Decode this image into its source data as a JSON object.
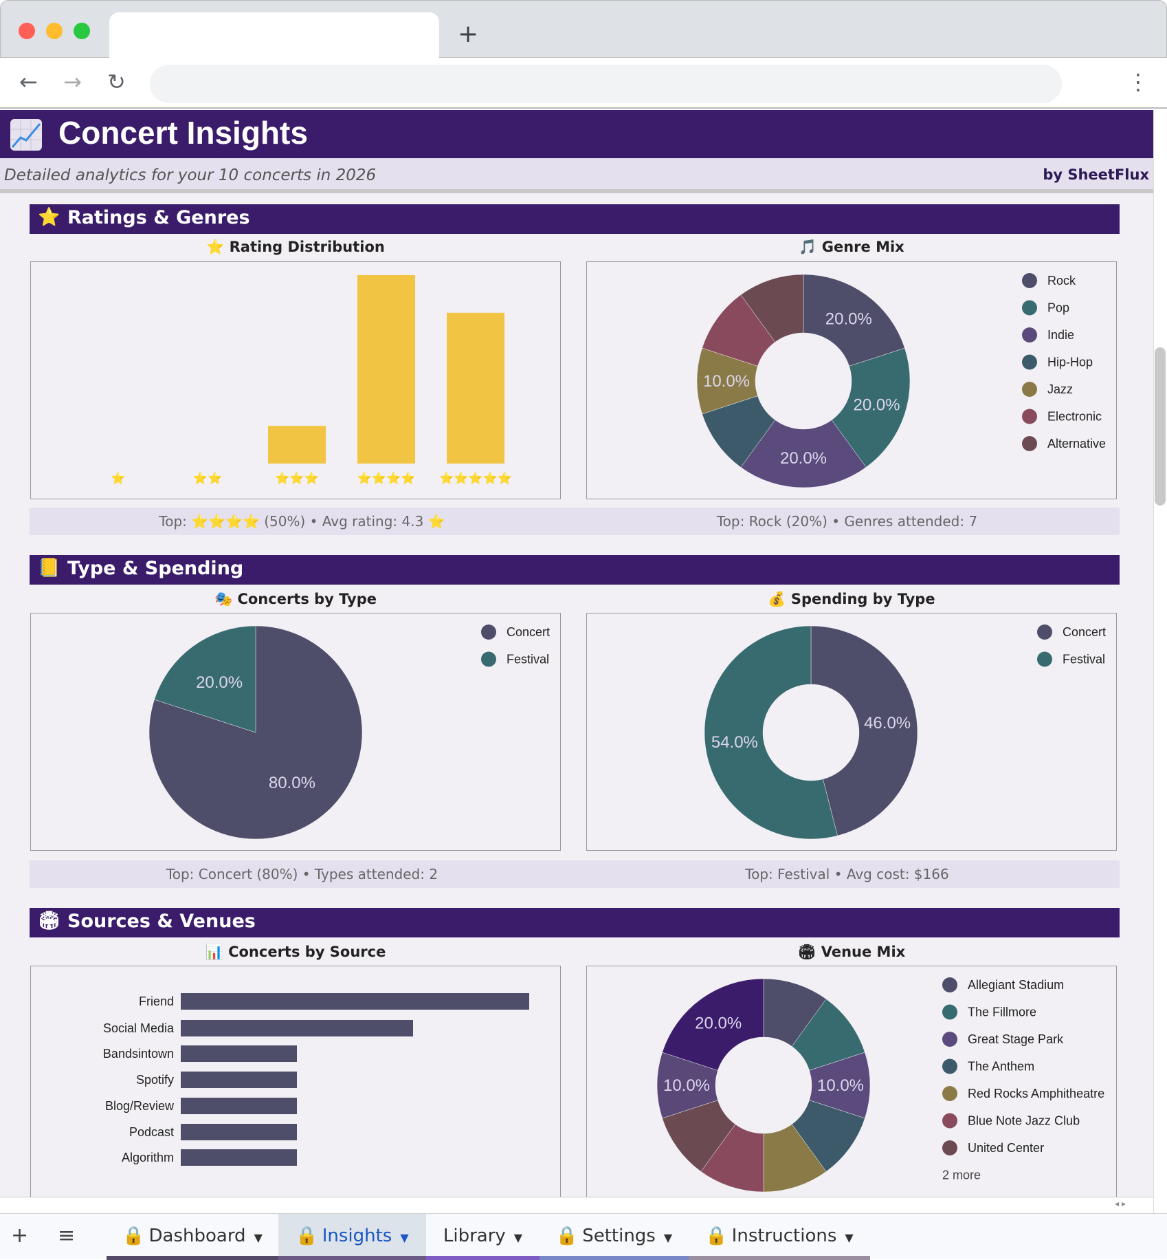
{
  "browser": {
    "new_tab": "+",
    "back": "←",
    "forward": "→",
    "reload": "↻",
    "menu": "⋮"
  },
  "header": {
    "icon": "chart-increasing-icon",
    "title": "Concert Insights",
    "subtitle": "Detailed analytics for your 10 concerts in 2026",
    "brand": "by SheetFlux"
  },
  "colors": {
    "header": "#3b1c6b",
    "bar": "#f2c443",
    "rock": "#4e4d6a",
    "pop": "#386b70"
  },
  "sections": [
    {
      "icon": "⭐",
      "title": "Ratings & Genres"
    },
    {
      "icon": "📒",
      "title": "Type & Spending"
    },
    {
      "icon": "🏟",
      "title": "Sources & Venues"
    }
  ],
  "chart_titles": {
    "rating": "⭐ Rating Distribution",
    "genre": "🎵 Genre Mix",
    "type": "🎭 Concerts by Type",
    "spending": "💰 Spending by Type",
    "source": "📊 Concerts by Source",
    "venue": "🏟 Venue Mix"
  },
  "summaries": {
    "ratings": "Top: ⭐⭐⭐⭐ (50%) • Avg rating: 4.3 ⭐",
    "genres": "Top: Rock (20%) • Genres attended: 7",
    "types": "Top: Concert (80%) • Types attended: 2",
    "spending": "Top: Festival • Avg cost: $166"
  },
  "chart_data": [
    {
      "id": "rating",
      "type": "bar",
      "categories": [
        "⭐",
        "⭐⭐",
        "⭐⭐⭐",
        "⭐⭐⭐⭐",
        "⭐⭐⭐⭐⭐"
      ],
      "values": [
        0,
        0,
        1,
        5,
        4
      ],
      "color": "#f2c443",
      "ylim": [
        0,
        5
      ]
    },
    {
      "id": "genre",
      "type": "pie",
      "donut": true,
      "categories": [
        "Rock",
        "Pop",
        "Indie",
        "Hip-Hop",
        "Jazz",
        "Electronic",
        "Alternative"
      ],
      "values": [
        20,
        20,
        20,
        10,
        10,
        10,
        10
      ],
      "labels": [
        "20.0%",
        "20.0%",
        "20.0%",
        "",
        "10.0%",
        "",
        ""
      ],
      "colors": [
        "#4e4d6a",
        "#386b70",
        "#5b4a7c",
        "#3d5a6b",
        "#8a7a47",
        "#8a4a5e",
        "#6b4a52"
      ],
      "legend": "right"
    },
    {
      "id": "type",
      "type": "pie",
      "donut": false,
      "categories": [
        "Concert",
        "Festival"
      ],
      "values": [
        80,
        20
      ],
      "labels": [
        "80.0%",
        "20.0%"
      ],
      "colors": [
        "#4e4d6a",
        "#386b70"
      ],
      "legend": "right"
    },
    {
      "id": "spending",
      "type": "pie",
      "donut": true,
      "categories": [
        "Concert",
        "Festival"
      ],
      "values": [
        46,
        54
      ],
      "labels": [
        "46.0%",
        "54.0%"
      ],
      "colors": [
        "#4e4d6a",
        "#386b70"
      ],
      "legend": "right"
    },
    {
      "id": "source",
      "type": "bar",
      "orientation": "horizontal",
      "categories": [
        "Friend",
        "Social Media",
        "Bandsintown",
        "Spotify",
        "Blog/Review",
        "Podcast",
        "Algorithm"
      ],
      "values": [
        3,
        2,
        1,
        1,
        1,
        1,
        1
      ],
      "color": "#4e4d6a"
    },
    {
      "id": "venue",
      "type": "pie",
      "donut": true,
      "categories": [
        "Allegiant Stadium",
        "The Fillmore",
        "Great Stage Park",
        "The Anthem",
        "Red Rocks Amphitheatre",
        "Blue Note Jazz Club",
        "United Center",
        "",
        ""
      ],
      "values": [
        10,
        10,
        10,
        10,
        10,
        10,
        10,
        10,
        20
      ],
      "labels": [
        "",
        "",
        "10.0%",
        "",
        "",
        "",
        "",
        "10.0%",
        "20.0%"
      ],
      "colors": [
        "#4e4d6a",
        "#386b70",
        "#5b4a7c",
        "#3d5a6b",
        "#8a7a47",
        "#8a4a5e",
        "#6b4a52",
        "#5a4878",
        "#3b1c6b"
      ],
      "legend": "right",
      "legend_more": "2 more"
    }
  ],
  "sheet_tabs": {
    "add": "+",
    "all": "≡",
    "tabs": [
      {
        "label": "Dashboard",
        "locked": true,
        "color": "#544a68"
      },
      {
        "label": "Insights",
        "locked": true,
        "active": true,
        "color": "#6a5a85"
      },
      {
        "label": "Library",
        "locked": false,
        "color": "#7e5cc4"
      },
      {
        "label": "Settings",
        "locked": true,
        "color": "#7788c8"
      },
      {
        "label": "Instructions",
        "locked": true,
        "color": "#9a8fa0"
      }
    ]
  }
}
